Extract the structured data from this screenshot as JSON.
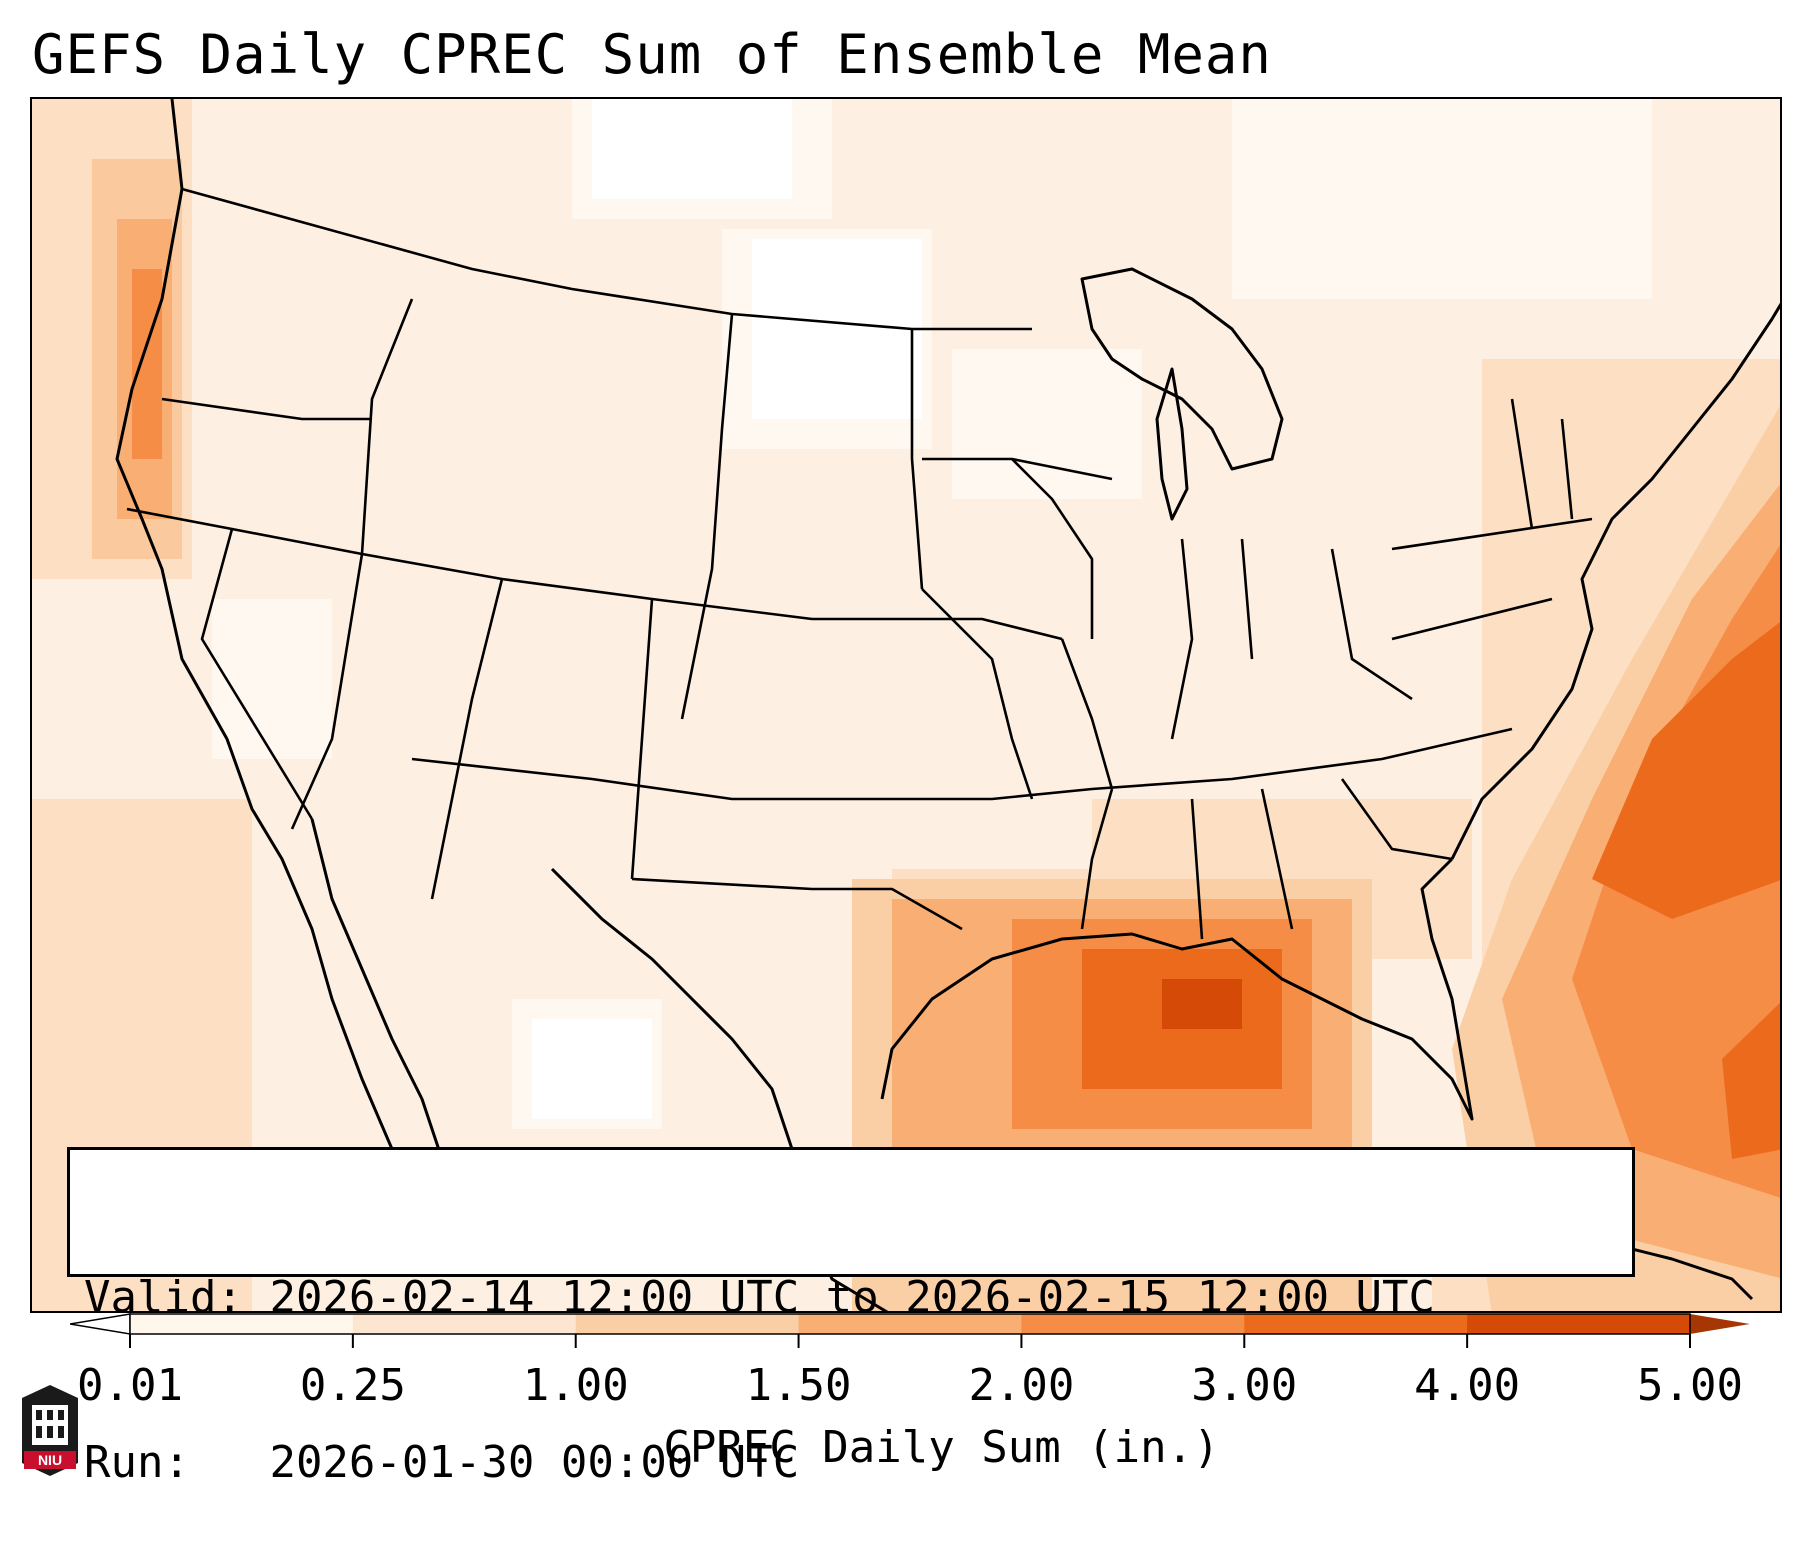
{
  "title": "GEFS Daily CPREC Sum of Ensemble Mean",
  "info": {
    "valid_label": "Valid:",
    "valid_value": "2026-02-14 12:00 UTC to 2026-02-15 12:00 UTC",
    "run_label": "Run:",
    "run_value": "2026-01-30 00:00 UTC"
  },
  "colorbar": {
    "label": "CPREC Daily Sum (in.)",
    "ticks": [
      "0.01",
      "0.25",
      "1.00",
      "1.50",
      "2.00",
      "3.00",
      "4.00",
      "5.00"
    ],
    "colors": [
      "#fff6ec",
      "#fde6d0",
      "#fbcfa6",
      "#f9ae73",
      "#f58d47",
      "#ec6a1c",
      "#d44a06"
    ],
    "under_color": "#ffffff",
    "over_color": "#a63603"
  },
  "map": {
    "background_color": "#fdf3e8",
    "heavy_regions": [
      "Gulf of Mexico",
      "Western Atlantic",
      "Pacific Northwest coast"
    ]
  },
  "logo": {
    "text": "NIU",
    "color": "#c8102e"
  }
}
